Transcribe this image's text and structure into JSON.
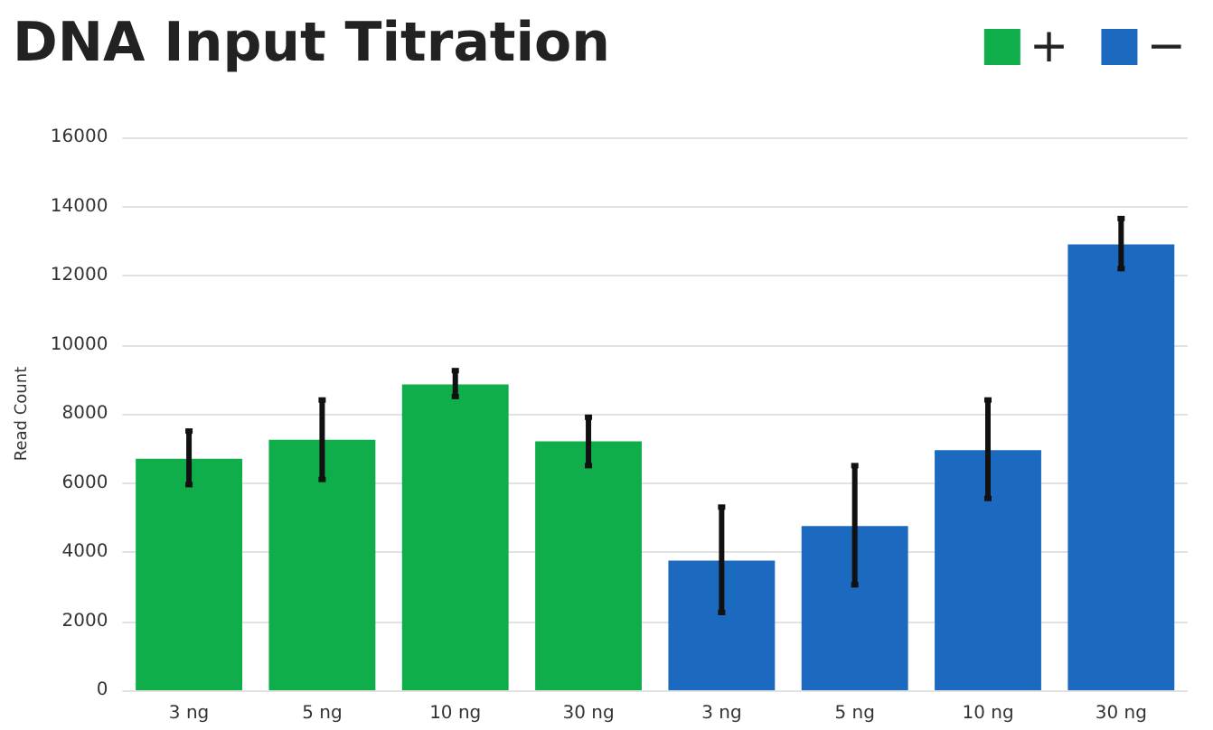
{
  "chart_data": {
    "type": "bar",
    "title": "DNA Input Titration",
    "ylabel": "Read Count",
    "categories": [
      "3 ng",
      "5 ng",
      "10 ng",
      "30 ng",
      "3 ng",
      "5 ng",
      "10 ng",
      "30 ng"
    ],
    "series": [
      {
        "name": "+",
        "color": "#0fae4a",
        "values": [
          6700,
          7250,
          8850,
          7200,
          null,
          null,
          null,
          null
        ],
        "errors": [
          [
            5950,
            7500
          ],
          [
            6100,
            8400
          ],
          [
            8500,
            9250
          ],
          [
            6500,
            7900
          ],
          null,
          null,
          null,
          null
        ]
      },
      {
        "name": "−",
        "color": "#1c6ac0",
        "values": [
          null,
          null,
          null,
          null,
          3750,
          4750,
          6950,
          12900
        ],
        "errors": [
          null,
          null,
          null,
          null,
          [
            2250,
            5300
          ],
          [
            3050,
            6500
          ],
          [
            5550,
            8400
          ],
          [
            12200,
            13650
          ]
        ]
      }
    ],
    "ylim": [
      0,
      16000
    ],
    "yticks": [
      0,
      2000,
      4000,
      6000,
      8000,
      10000,
      12000,
      14000,
      16000
    ],
    "grid": "y",
    "legend": "top right"
  }
}
